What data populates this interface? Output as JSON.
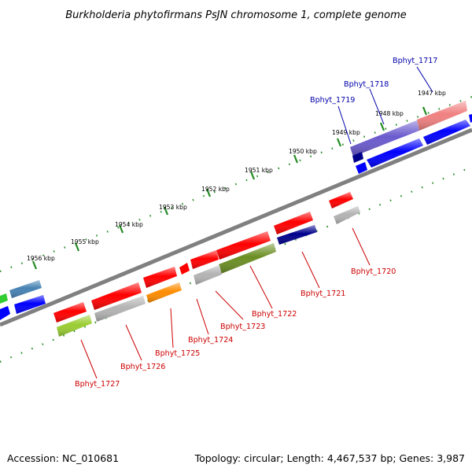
{
  "title": "Burkholderia phytofirmans PsJN chromosome 1, complete genome",
  "footer": {
    "accession": "Accession: NC_010681",
    "summary": "Topology: circular; Length: 4,467,537 bp; Genes: 3,987"
  },
  "ticks": [
    "1947 kbp",
    "1948 kbp",
    "1949 kbp",
    "1950 kbp",
    "1951 kbp",
    "1952 kbp",
    "1953 kbp",
    "1954 kbp",
    "1955 kbp",
    "1956 kbp"
  ],
  "genes_top": [
    "Bphyt_1717",
    "Bphyt_1718",
    "Bphyt_1719"
  ],
  "genes_bottom": [
    "Bphyt_1720",
    "Bphyt_1721",
    "Bphyt_1722",
    "Bphyt_1723",
    "Bphyt_1724",
    "Bphyt_1725",
    "Bphyt_1726",
    "Bphyt_1727"
  ],
  "colors": {
    "red": "#ff0000",
    "blue": "#0000ff",
    "gray": "#b3b3b3",
    "olive": "#6b8e23",
    "orange": "#ff8c00",
    "navy": "#00008b",
    "lime": "#9acd32",
    "steel": "#4682b4",
    "green": "#32cd32",
    "slate": "#6a5acd",
    "pink": "#f08080",
    "backbone": "#808080",
    "tick": "#228b22"
  }
}
